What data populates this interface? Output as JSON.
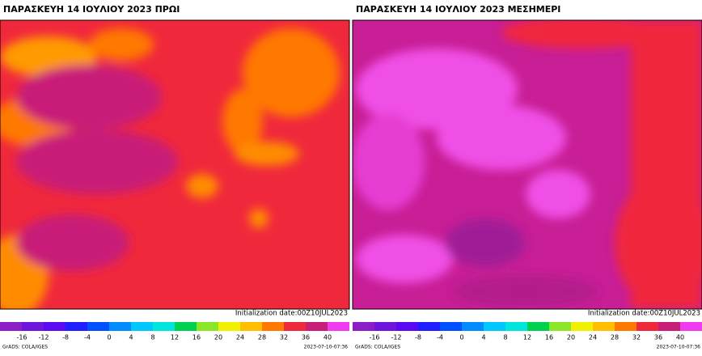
{
  "panels": [
    {
      "title": "ΠΑΡΑΣΚΕΥΗ 14 ΙΟΥΛΙΟΥ 2023 ΠΡΩΙ",
      "init": "Initialization date:00Z10JUL2023",
      "colorbar": {
        "ticks": [
          -16,
          -12,
          -8,
          -4,
          0,
          4,
          8,
          12,
          16,
          20,
          24,
          28,
          32,
          36,
          40
        ],
        "colors": [
          "#8c1ec8",
          "#6e14dc",
          "#5a0af0",
          "#1e1eff",
          "#0050ff",
          "#008cff",
          "#00c8ff",
          "#00e6dc",
          "#00d250",
          "#8ce628",
          "#f0f000",
          "#ffbe00",
          "#ff7800",
          "#f0283c",
          "#c81e78",
          "#f03cf0"
        ]
      },
      "credit": "GrADS: COLA/IGES",
      "timestamp": "2023-07-10-07:36"
    },
    {
      "title": "ΠΑΡΑΣΚΕΥΗ 14 ΙΟΥΛΙΟΥ 2023 ΜΕΣΗΜΕΡΙ",
      "init": "Initialization date:00Z10JUL2023",
      "colorbar": {
        "ticks": [
          -16,
          -12,
          -8,
          -4,
          0,
          4,
          8,
          12,
          16,
          20,
          24,
          28,
          32,
          36,
          40
        ],
        "colors": [
          "#8c1ec8",
          "#6e14dc",
          "#5a0af0",
          "#1e1eff",
          "#0050ff",
          "#008cff",
          "#00c8ff",
          "#00e6dc",
          "#00d250",
          "#8ce628",
          "#f0f000",
          "#ffbe00",
          "#ff7800",
          "#f0283c",
          "#c81e78",
          "#f03cf0"
        ]
      },
      "credit": "GrADS: COLA/IGES",
      "timestamp": "2023-07-10-07:36"
    }
  ]
}
